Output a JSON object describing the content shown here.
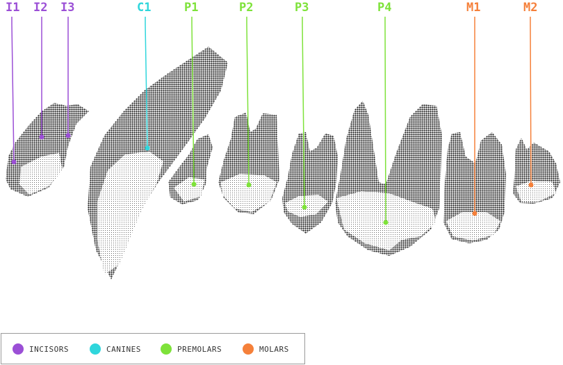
{
  "colors": {
    "incisors": "#9b4fd6",
    "canines": "#2fd6dc",
    "premolars": "#7ee23a",
    "molars": "#f5803a",
    "tooth_dark": "#1a1a1a"
  },
  "labels": [
    {
      "id": "I1",
      "text": "I1",
      "group": "incisors"
    },
    {
      "id": "I2",
      "text": "I2",
      "group": "incisors"
    },
    {
      "id": "I3",
      "text": "I3",
      "group": "incisors"
    },
    {
      "id": "C1",
      "text": "C1",
      "group": "canines"
    },
    {
      "id": "P1",
      "text": "P1",
      "group": "premolars"
    },
    {
      "id": "P2",
      "text": "P2",
      "group": "premolars"
    },
    {
      "id": "P3",
      "text": "P3",
      "group": "premolars"
    },
    {
      "id": "P4",
      "text": "P4",
      "group": "premolars"
    },
    {
      "id": "M1",
      "text": "M1",
      "group": "molars"
    },
    {
      "id": "M2",
      "text": "M2",
      "group": "molars"
    }
  ],
  "legend": [
    {
      "group": "incisors",
      "label": "INCISORS"
    },
    {
      "group": "canines",
      "label": "CANINES"
    },
    {
      "group": "premolars",
      "label": "PREMOLARS"
    },
    {
      "group": "molars",
      "label": "MOLARS"
    }
  ]
}
